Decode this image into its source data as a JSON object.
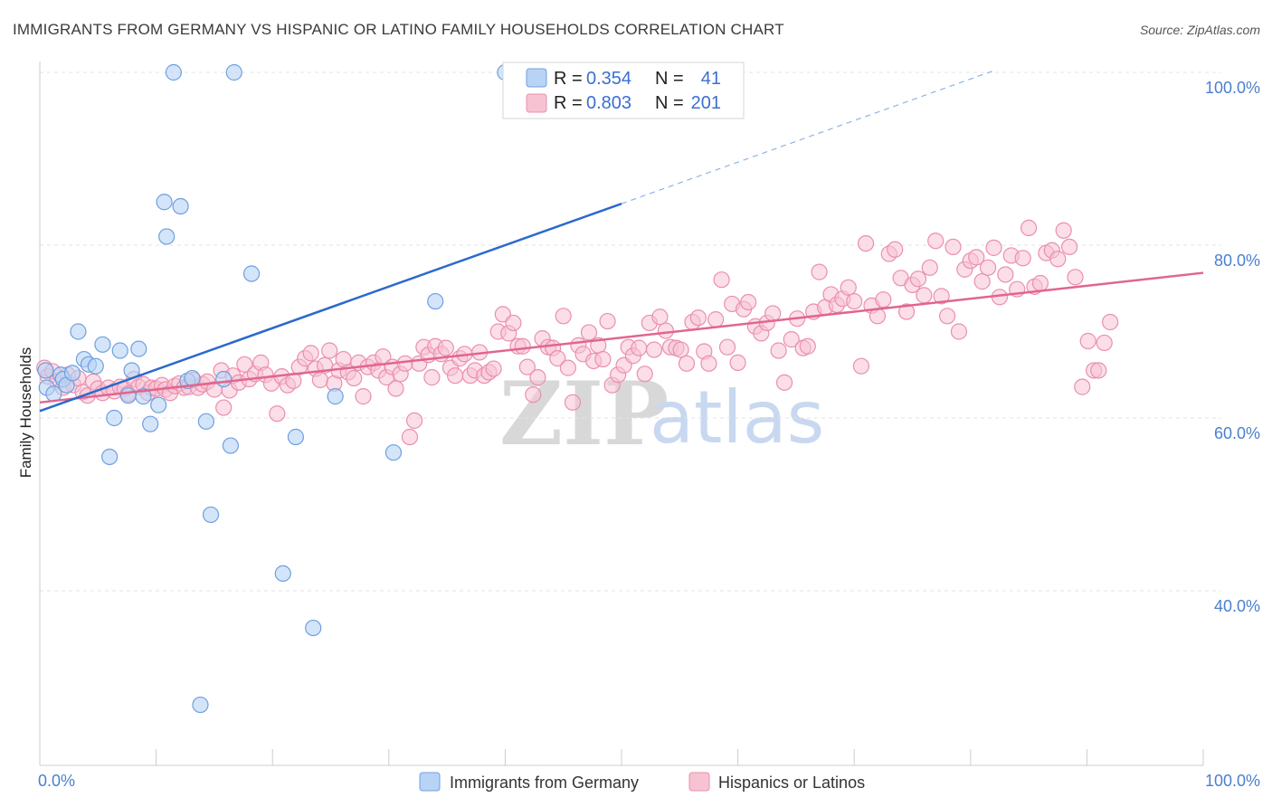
{
  "header": {
    "title": "IMMIGRANTS FROM GERMANY VS HISPANIC OR LATINO FAMILY HOUSEHOLDS CORRELATION CHART",
    "source": "Source: ZipAtlas.com"
  },
  "watermark": {
    "zip": "ZIP",
    "atlas": "atlas"
  },
  "legend_top": {
    "series1": {
      "r_label": "R =",
      "r_value": "0.354",
      "n_label": "N =",
      "n_value": "41"
    },
    "series2": {
      "r_label": "R =",
      "r_value": "0.803",
      "n_label": "N =",
      "n_value": "201"
    }
  },
  "legend_bottom": {
    "series1": "Immigrants from Germany",
    "series2": "Hispanics or Latinos"
  },
  "colors": {
    "blue_fill": "#b8d3f5",
    "blue_stroke": "#6f9fe0",
    "blue_line": "#2a6acc",
    "pink_fill": "#f7c3d3",
    "pink_stroke": "#ea8fae",
    "pink_line": "#e0668f",
    "grid": "#e3e3e3"
  },
  "chart_data": {
    "type": "scatter",
    "title": "IMMIGRANTS FROM GERMANY VS HISPANIC OR LATINO FAMILY HOUSEHOLDS CORRELATION CHART",
    "xlabel": "",
    "ylabel": "Family Households",
    "xlim": [
      0,
      100
    ],
    "ylim": [
      20,
      102
    ],
    "x_tick_labels": [
      "0.0%",
      "100.0%"
    ],
    "y_ticks": [
      40,
      60,
      80,
      100
    ],
    "y_tick_labels": [
      "40.0%",
      "60.0%",
      "80.0%",
      "100.0%"
    ],
    "grid": true,
    "series": [
      {
        "name": "Immigrants from Germany",
        "R": 0.354,
        "N": 41,
        "trend": {
          "x0": 0,
          "y0": 60.8,
          "x1": 50,
          "y1": 84.8,
          "dash_to_x": 82,
          "dash_to_y": 100.2
        },
        "points": [
          [
            0.5,
            65.5
          ],
          [
            0.6,
            63.5
          ],
          [
            1.2,
            62.8
          ],
          [
            1.8,
            65
          ],
          [
            2,
            64.5
          ],
          [
            2.3,
            63.8
          ],
          [
            2.8,
            65.2
          ],
          [
            3.3,
            70
          ],
          [
            3.8,
            66.8
          ],
          [
            4.2,
            66.2
          ],
          [
            4.8,
            66
          ],
          [
            5.4,
            68.5
          ],
          [
            6,
            55.5
          ],
          [
            6.4,
            60
          ],
          [
            6.9,
            67.8
          ],
          [
            7.6,
            62.6
          ],
          [
            7.9,
            65.5
          ],
          [
            8.5,
            68
          ],
          [
            8.9,
            62.5
          ],
          [
            9.5,
            59.3
          ],
          [
            10.2,
            61.5
          ],
          [
            10.7,
            85
          ],
          [
            10.9,
            81
          ],
          [
            11.5,
            100
          ],
          [
            12.1,
            84.5
          ],
          [
            12.7,
            64.3
          ],
          [
            13.1,
            64.6
          ],
          [
            13.8,
            26.8
          ],
          [
            14.3,
            59.6
          ],
          [
            14.7,
            48.8
          ],
          [
            15.8,
            64.5
          ],
          [
            16.4,
            56.8
          ],
          [
            16.7,
            100
          ],
          [
            18.2,
            76.7
          ],
          [
            20.9,
            42
          ],
          [
            22,
            57.8
          ],
          [
            23.5,
            35.7
          ],
          [
            25.4,
            62.5
          ],
          [
            30.4,
            56
          ],
          [
            34,
            73.5
          ],
          [
            40,
            100
          ]
        ]
      },
      {
        "name": "Hispanics or Latinos",
        "R": 0.803,
        "N": 201,
        "trend": {
          "x0": 0,
          "y0": 61.8,
          "x1": 100,
          "y1": 76.8
        },
        "points": [
          [
            0.4,
            65.8
          ],
          [
            0.7,
            64.8
          ],
          [
            1.1,
            65.4
          ],
          [
            1.5,
            64.2
          ],
          [
            2,
            63.5
          ],
          [
            2.4,
            65
          ],
          [
            2.9,
            63.8
          ],
          [
            3.3,
            64.6
          ],
          [
            3.7,
            63
          ],
          [
            4.1,
            62.6
          ],
          [
            4.6,
            64.2
          ],
          [
            5,
            63.4
          ],
          [
            5.4,
            62.9
          ],
          [
            5.9,
            63.5
          ],
          [
            6.4,
            63.1
          ],
          [
            6.9,
            63.6
          ],
          [
            7.3,
            63.4
          ],
          [
            7.6,
            62.8
          ],
          [
            8.1,
            64.5
          ],
          [
            8.5,
            63.6
          ],
          [
            8.9,
            63.9
          ],
          [
            9.3,
            62.9
          ],
          [
            9.6,
            63.5
          ],
          [
            10,
            63.4
          ],
          [
            10.5,
            63.8
          ],
          [
            10.8,
            63.3
          ],
          [
            11.2,
            62.9
          ],
          [
            11.6,
            63.7
          ],
          [
            12,
            64
          ],
          [
            12.4,
            63.5
          ],
          [
            12.8,
            63.6
          ],
          [
            13.2,
            64.4
          ],
          [
            13.6,
            63.5
          ],
          [
            14,
            63.9
          ],
          [
            14.4,
            64.2
          ],
          [
            15,
            63.3
          ],
          [
            15.6,
            65.5
          ],
          [
            15.8,
            61.2
          ],
          [
            16.3,
            63.2
          ],
          [
            16.6,
            64.9
          ],
          [
            17.1,
            64.1
          ],
          [
            17.6,
            66.2
          ],
          [
            18,
            64.5
          ],
          [
            18.5,
            65.1
          ],
          [
            19,
            66.4
          ],
          [
            19.4,
            65
          ],
          [
            19.9,
            64
          ],
          [
            20.4,
            60.5
          ],
          [
            20.8,
            64.8
          ],
          [
            21.3,
            63.8
          ],
          [
            21.8,
            64.3
          ],
          [
            22.3,
            65.9
          ],
          [
            22.8,
            66.9
          ],
          [
            23.3,
            67.5
          ],
          [
            23.7,
            65.7
          ],
          [
            24.1,
            64.4
          ],
          [
            24.5,
            66.1
          ],
          [
            24.9,
            67.8
          ],
          [
            25.3,
            64
          ],
          [
            25.7,
            65.5
          ],
          [
            26.1,
            66.8
          ],
          [
            26.5,
            65.3
          ],
          [
            27,
            64.6
          ],
          [
            27.4,
            66.4
          ],
          [
            27.8,
            62.5
          ],
          [
            28.2,
            65.9
          ],
          [
            28.7,
            66.4
          ],
          [
            29.1,
            65.5
          ],
          [
            29.5,
            67.1
          ],
          [
            29.8,
            64.7
          ],
          [
            30.3,
            65.9
          ],
          [
            30.6,
            63.4
          ],
          [
            31,
            65.1
          ],
          [
            31.4,
            66.3
          ],
          [
            31.8,
            57.8
          ],
          [
            32.2,
            59.7
          ],
          [
            32.6,
            66.3
          ],
          [
            33,
            68.2
          ],
          [
            33.4,
            67.3
          ],
          [
            33.7,
            64.7
          ],
          [
            34,
            68.3
          ],
          [
            34.5,
            67.4
          ],
          [
            34.9,
            68.1
          ],
          [
            35.3,
            65.8
          ],
          [
            35.7,
            64.9
          ],
          [
            36.1,
            66.9
          ],
          [
            36.5,
            67.4
          ],
          [
            37,
            64.9
          ],
          [
            37.4,
            65.5
          ],
          [
            37.8,
            67.6
          ],
          [
            38.2,
            64.9
          ],
          [
            38.6,
            65.3
          ],
          [
            39,
            65.7
          ],
          [
            39.4,
            70
          ],
          [
            39.8,
            72
          ],
          [
            40.3,
            69.8
          ],
          [
            40.7,
            71
          ],
          [
            41.1,
            68.3
          ],
          [
            41.5,
            68.3
          ],
          [
            41.9,
            65.9
          ],
          [
            42.4,
            62.7
          ],
          [
            42.8,
            64.7
          ],
          [
            43.2,
            69.2
          ],
          [
            43.7,
            68.2
          ],
          [
            44.1,
            68.1
          ],
          [
            44.5,
            66.9
          ],
          [
            45,
            71.8
          ],
          [
            45.4,
            65.8
          ],
          [
            45.8,
            61.8
          ],
          [
            46.3,
            68.4
          ],
          [
            46.7,
            67.4
          ],
          [
            47.2,
            69.9
          ],
          [
            47.6,
            66.6
          ],
          [
            48,
            68.4
          ],
          [
            48.4,
            66.8
          ],
          [
            48.8,
            71.2
          ],
          [
            49.2,
            63.8
          ],
          [
            49.7,
            65
          ],
          [
            50.2,
            66.1
          ],
          [
            50.6,
            68.2
          ],
          [
            51,
            67.2
          ],
          [
            51.5,
            68.1
          ],
          [
            52,
            65.1
          ],
          [
            52.4,
            71
          ],
          [
            52.8,
            67.9
          ],
          [
            53.3,
            71.7
          ],
          [
            53.8,
            70.1
          ],
          [
            54.2,
            68.2
          ],
          [
            54.7,
            68.1
          ],
          [
            55.1,
            67.9
          ],
          [
            55.6,
            66.3
          ],
          [
            56.1,
            71.1
          ],
          [
            56.6,
            71.6
          ],
          [
            57.1,
            67.7
          ],
          [
            57.5,
            66.3
          ],
          [
            58.1,
            71.4
          ],
          [
            58.6,
            76
          ],
          [
            59.1,
            68.2
          ],
          [
            59.5,
            73.2
          ],
          [
            60,
            66.4
          ],
          [
            60.5,
            72.6
          ],
          [
            60.9,
            73.4
          ],
          [
            61.5,
            70.6
          ],
          [
            62,
            69.8
          ],
          [
            62.5,
            71
          ],
          [
            63,
            72.1
          ],
          [
            63.5,
            67.8
          ],
          [
            64,
            64.1
          ],
          [
            64.6,
            69.1
          ],
          [
            65.1,
            71.5
          ],
          [
            65.6,
            68.1
          ],
          [
            66,
            68.3
          ],
          [
            66.5,
            72.3
          ],
          [
            67,
            76.9
          ],
          [
            67.5,
            72.8
          ],
          [
            68,
            74.3
          ],
          [
            68.5,
            73.1
          ],
          [
            69,
            73.8
          ],
          [
            69.5,
            75.1
          ],
          [
            70,
            73.5
          ],
          [
            70.6,
            66
          ],
          [
            71,
            80.2
          ],
          [
            71.5,
            73
          ],
          [
            72,
            71.8
          ],
          [
            72.5,
            73.7
          ],
          [
            73,
            79
          ],
          [
            73.5,
            79.5
          ],
          [
            74,
            76.2
          ],
          [
            74.5,
            72.3
          ],
          [
            75,
            75.4
          ],
          [
            75.5,
            76.1
          ],
          [
            76,
            74.2
          ],
          [
            76.5,
            77.4
          ],
          [
            77,
            80.5
          ],
          [
            77.5,
            74.1
          ],
          [
            78,
            71.8
          ],
          [
            78.5,
            79.8
          ],
          [
            79,
            70
          ],
          [
            79.5,
            77.2
          ],
          [
            80,
            78.2
          ],
          [
            80.5,
            78.6
          ],
          [
            81,
            75.8
          ],
          [
            81.5,
            77.4
          ],
          [
            82,
            79.7
          ],
          [
            82.5,
            74
          ],
          [
            83,
            76.6
          ],
          [
            83.5,
            78.8
          ],
          [
            84,
            74.9
          ],
          [
            84.5,
            78.5
          ],
          [
            85,
            82
          ],
          [
            85.5,
            75.2
          ],
          [
            86,
            75.6
          ],
          [
            86.5,
            79.1
          ],
          [
            87,
            79.4
          ],
          [
            87.5,
            78.4
          ],
          [
            88,
            81.7
          ],
          [
            88.5,
            79.8
          ],
          [
            89,
            76.3
          ],
          [
            89.6,
            63.6
          ],
          [
            90.1,
            68.9
          ],
          [
            90.6,
            65.5
          ],
          [
            91,
            65.5
          ],
          [
            91.5,
            68.7
          ],
          [
            92,
            71.1
          ]
        ]
      }
    ]
  }
}
